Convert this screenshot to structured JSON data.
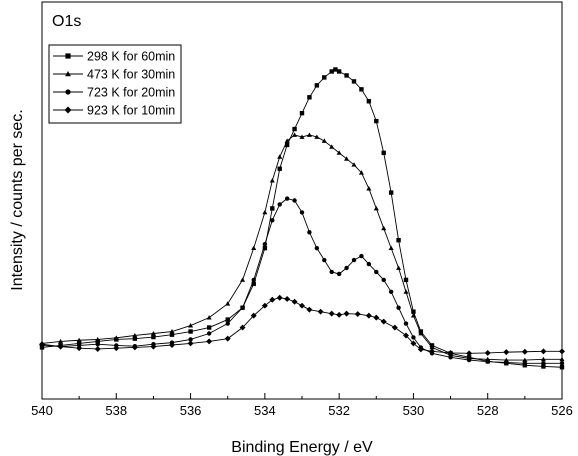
{
  "chart_data": {
    "type": "scatter",
    "panel_label": "O1s",
    "xlabel": "Binding Energy / eV",
    "ylabel": "Intensity / counts per sec.",
    "xlim": [
      540,
      526
    ],
    "x_reversed": true,
    "x_ticks": [
      540,
      538,
      536,
      534,
      532,
      530,
      528,
      526
    ],
    "ylim": [
      0,
      100
    ],
    "y_ticks_shown": false,
    "grid": false,
    "legend_position": "top-left",
    "series": [
      {
        "name": "298 K for 60min",
        "marker": "square",
        "points": [
          [
            540,
            13
          ],
          [
            539.5,
            13.5
          ],
          [
            539,
            14
          ],
          [
            538.5,
            14.5
          ],
          [
            538,
            15
          ],
          [
            537.5,
            15.2
          ],
          [
            537,
            15.6
          ],
          [
            536.5,
            16.2
          ],
          [
            536,
            17
          ],
          [
            535.5,
            18
          ],
          [
            535,
            20
          ],
          [
            534.6,
            23
          ],
          [
            534.3,
            29
          ],
          [
            534,
            38
          ],
          [
            533.8,
            48
          ],
          [
            533.6,
            58
          ],
          [
            533.4,
            64
          ],
          [
            533.2,
            68
          ],
          [
            533,
            72
          ],
          [
            532.8,
            76
          ],
          [
            532.6,
            79
          ],
          [
            532.4,
            81
          ],
          [
            532.2,
            82.5
          ],
          [
            532.1,
            83
          ],
          [
            532,
            82.5
          ],
          [
            531.8,
            81.5
          ],
          [
            531.6,
            80
          ],
          [
            531.4,
            78
          ],
          [
            531.2,
            75
          ],
          [
            531,
            70
          ],
          [
            530.8,
            62
          ],
          [
            530.6,
            52
          ],
          [
            530.4,
            40
          ],
          [
            530.2,
            30
          ],
          [
            530,
            22
          ],
          [
            529.8,
            17
          ],
          [
            529.5,
            13.5
          ],
          [
            529,
            11.5
          ],
          [
            528.5,
            10.5
          ],
          [
            528,
            9.5
          ],
          [
            527.5,
            9
          ],
          [
            527,
            8.5
          ],
          [
            526.5,
            8.2
          ],
          [
            526,
            8
          ]
        ]
      },
      {
        "name": "473 K for 30min",
        "marker": "triangle",
        "points": [
          [
            540,
            14
          ],
          [
            539.5,
            14.5
          ],
          [
            539,
            14.8
          ],
          [
            538.5,
            15
          ],
          [
            538,
            15.4
          ],
          [
            537.5,
            16
          ],
          [
            537,
            16.5
          ],
          [
            536.5,
            17
          ],
          [
            536,
            18.5
          ],
          [
            535.5,
            20.5
          ],
          [
            535,
            24
          ],
          [
            534.6,
            30
          ],
          [
            534.3,
            38
          ],
          [
            534,
            47
          ],
          [
            533.8,
            55
          ],
          [
            533.6,
            61
          ],
          [
            533.4,
            65
          ],
          [
            533.2,
            66.5
          ],
          [
            533,
            66
          ],
          [
            532.8,
            66.5
          ],
          [
            532.6,
            66
          ],
          [
            532.4,
            65
          ],
          [
            532.2,
            63.5
          ],
          [
            532,
            62
          ],
          [
            531.8,
            60.5
          ],
          [
            531.6,
            59
          ],
          [
            531.4,
            57
          ],
          [
            531.2,
            53
          ],
          [
            531,
            48
          ],
          [
            530.8,
            43
          ],
          [
            530.6,
            38
          ],
          [
            530.4,
            33
          ],
          [
            530.2,
            27
          ],
          [
            530,
            21
          ],
          [
            529.8,
            16.5
          ],
          [
            529.5,
            13
          ],
          [
            529,
            11
          ],
          [
            528.5,
            10.2
          ],
          [
            528,
            10
          ],
          [
            527.5,
            9.8
          ],
          [
            527,
            9.8
          ],
          [
            526.5,
            10
          ],
          [
            526,
            10
          ]
        ]
      },
      {
        "name": "723 K for 20min",
        "marker": "circle",
        "points": [
          [
            540,
            13.5
          ],
          [
            539.5,
            13.2
          ],
          [
            539,
            13.5
          ],
          [
            538.5,
            13.8
          ],
          [
            538,
            13.5
          ],
          [
            537.5,
            13.3
          ],
          [
            537,
            13.8
          ],
          [
            536.5,
            14.2
          ],
          [
            536,
            15
          ],
          [
            535.5,
            16.5
          ],
          [
            535,
            19
          ],
          [
            534.6,
            23
          ],
          [
            534.3,
            30
          ],
          [
            534,
            39
          ],
          [
            533.8,
            45
          ],
          [
            533.6,
            49
          ],
          [
            533.4,
            50.5
          ],
          [
            533.2,
            50
          ],
          [
            533,
            47
          ],
          [
            532.8,
            42
          ],
          [
            532.6,
            38
          ],
          [
            532.4,
            35
          ],
          [
            532.2,
            32
          ],
          [
            532,
            31.5
          ],
          [
            531.8,
            33
          ],
          [
            531.6,
            35
          ],
          [
            531.4,
            36
          ],
          [
            531.2,
            34
          ],
          [
            531,
            32
          ],
          [
            530.8,
            30
          ],
          [
            530.6,
            27
          ],
          [
            530.4,
            23
          ],
          [
            530.2,
            19
          ],
          [
            530,
            15.5
          ],
          [
            529.8,
            13
          ],
          [
            529.5,
            11.5
          ],
          [
            529,
            10.5
          ],
          [
            528.5,
            9.8
          ],
          [
            528,
            9.4
          ],
          [
            527.5,
            9.2
          ],
          [
            527,
            9
          ],
          [
            526.5,
            9
          ],
          [
            526,
            9
          ]
        ]
      },
      {
        "name": "923 K for 10min",
        "marker": "diamond",
        "points": [
          [
            540,
            13.8
          ],
          [
            539.5,
            13.2
          ],
          [
            539,
            12.8
          ],
          [
            538.5,
            12.6
          ],
          [
            538,
            12.8
          ],
          [
            537.5,
            13
          ],
          [
            537,
            13.2
          ],
          [
            536.5,
            13.6
          ],
          [
            536,
            14
          ],
          [
            535.5,
            14.5
          ],
          [
            535,
            15.2
          ],
          [
            534.6,
            18
          ],
          [
            534.3,
            21
          ],
          [
            534,
            23.5
          ],
          [
            533.8,
            25
          ],
          [
            533.6,
            25.5
          ],
          [
            533.4,
            25.2
          ],
          [
            533.2,
            24.5
          ],
          [
            533,
            23.5
          ],
          [
            532.8,
            22.5
          ],
          [
            532.5,
            22
          ],
          [
            532.2,
            21.5
          ],
          [
            532,
            21.2
          ],
          [
            531.8,
            21.5
          ],
          [
            531.5,
            21.4
          ],
          [
            531.2,
            21
          ],
          [
            531,
            20.5
          ],
          [
            530.8,
            19.5
          ],
          [
            530.5,
            18
          ],
          [
            530.2,
            16
          ],
          [
            530,
            14
          ],
          [
            529.8,
            12.5
          ],
          [
            529.5,
            12
          ],
          [
            529,
            11.6
          ],
          [
            528.5,
            11.5
          ],
          [
            528,
            11.6
          ],
          [
            527.5,
            11.8
          ],
          [
            527,
            11.9
          ],
          [
            526.5,
            12
          ],
          [
            526,
            12
          ]
        ]
      }
    ]
  }
}
